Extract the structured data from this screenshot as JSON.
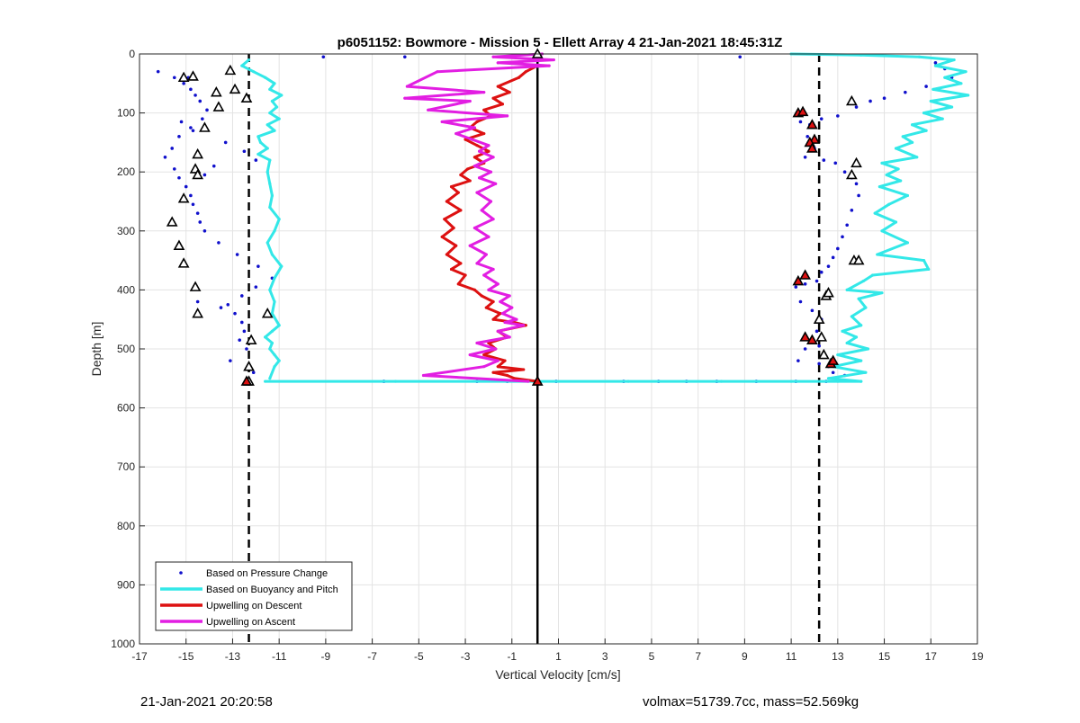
{
  "footer": {
    "timestamp": "21-Jan-2021 20:20:58",
    "info": "volmax=51739.7cc, mass=52.569kg"
  },
  "chart_data": {
    "type": "scatter",
    "title": "p6051152: Bowmore - Mission 5 - Ellett Array 4 21-Jan-2021 18:45:31Z",
    "xlabel": "Vertical Velocity [cm/s]",
    "ylabel": "Depth [m]",
    "xlim": [
      -17,
      19
    ],
    "ylim": [
      0,
      1000
    ],
    "y_reversed": true,
    "grid": true,
    "xticks": [
      -17,
      -15,
      -13,
      -11,
      -9,
      -7,
      -5,
      -3,
      -1,
      1,
      3,
      5,
      7,
      9,
      11,
      13,
      15,
      17,
      19
    ],
    "yticks": [
      0,
      100,
      200,
      300,
      400,
      500,
      600,
      700,
      800,
      900,
      1000
    ],
    "legend_position": "bottom-left",
    "reference_lines": [
      {
        "x": -12.3,
        "style": "dashed",
        "color": "#000000"
      },
      {
        "x": 0.1,
        "style": "solid",
        "color": "#000000"
      },
      {
        "x": 12.2,
        "style": "dashed",
        "color": "#000000"
      }
    ],
    "series": [
      {
        "name": "Based on Pressure Change",
        "kind": "points",
        "color": "#1010cc",
        "x": [
          -16.2,
          -15.5,
          -14.9,
          -15.1,
          -14.8,
          -14.6,
          -14.4,
          -14.1,
          -14.3,
          -14.8,
          -15.3,
          -15.6,
          -15.9,
          -15.5,
          -15.3,
          -15.0,
          -14.8,
          -14.7,
          -14.5,
          -14.4,
          -14.2,
          -13.6,
          -12.8,
          -11.9,
          -11.3,
          -12.0,
          -12.6,
          -13.2,
          -13.5,
          -12.9,
          -12.6,
          -12.5,
          -12.7,
          -12.4,
          -9.1,
          -5.6,
          -15.2,
          -14.7,
          -13.3,
          -12.5,
          -12.0,
          -13.8,
          -14.2,
          -14.5,
          -13.1,
          -12.1,
          8.8,
          17.2,
          17.6,
          17.9,
          16.8,
          15.9,
          15.0,
          14.4,
          13.8,
          13.0,
          12.3,
          11.8,
          11.4,
          11.7,
          12.0,
          11.6,
          12.4,
          12.9,
          13.3,
          13.6,
          13.8,
          13.9,
          13.6,
          13.4,
          13.2,
          13.0,
          12.8,
          12.6,
          12.3,
          12.1,
          11.6,
          11.2,
          11.4,
          11.9,
          12.3,
          12.1,
          12.3,
          12.2,
          11.6,
          11.3,
          12.2,
          12.6,
          12.8,
          13.3,
          14.1,
          -6.5,
          -2.5,
          -1.2,
          0.9,
          3.8,
          5.3,
          6.5,
          7.8,
          9.5,
          11.2,
          12.5
        ],
        "y": [
          30,
          40,
          40,
          50,
          60,
          70,
          80,
          95,
          110,
          125,
          140,
          160,
          175,
          195,
          210,
          225,
          240,
          255,
          270,
          285,
          300,
          320,
          340,
          360,
          380,
          395,
          410,
          425,
          430,
          440,
          455,
          470,
          485,
          500,
          5,
          5,
          115,
          130,
          150,
          165,
          180,
          190,
          205,
          420,
          520,
          540,
          5,
          15,
          25,
          40,
          55,
          65,
          75,
          80,
          90,
          105,
          110,
          120,
          115,
          140,
          160,
          175,
          180,
          185,
          200,
          210,
          220,
          240,
          265,
          290,
          310,
          330,
          345,
          360,
          370,
          385,
          390,
          395,
          420,
          435,
          450,
          470,
          480,
          495,
          500,
          520,
          525,
          530,
          540,
          545,
          540,
          555,
          555,
          555,
          555,
          555,
          555,
          555,
          555,
          555,
          555,
          555
        ]
      },
      {
        "name": "Based on Buoyancy and Pitch",
        "kind": "line",
        "color": "#33e8e8",
        "segments": [
          {
            "x": [
              -12.3,
              -12.6,
              -12.1,
              -11.6,
              -11.2,
              -11.4,
              -10.9,
              -11.3,
              -11.1,
              -11.4,
              -11.0,
              -11.5,
              -11.2,
              -11.9,
              -11.8,
              -11.5,
              -11.9,
              -11.4,
              -11.5,
              -11.4,
              -11.3,
              -11.4,
              -11.0,
              -11.2,
              -11.5,
              -11.3,
              -10.9,
              -11.2,
              -11.4,
              -11.2,
              -11.3,
              -11.0,
              -11.3,
              -11.6,
              -11.3,
              -11.4,
              -11.2,
              -11.0,
              -11.2,
              -11.4
            ],
            "y": [
              10,
              20,
              30,
              40,
              50,
              60,
              70,
              80,
              90,
              100,
              110,
              120,
              130,
              140,
              150,
              160,
              170,
              180,
              200,
              220,
              240,
              260,
              280,
              300,
              320,
              340,
              360,
              380,
              400,
              420,
              440,
              460,
              470,
              480,
              490,
              500,
              510,
              520,
              530,
              550
            ]
          },
          {
            "x": [
              -11.6,
              -6,
              0,
              4,
              8,
              11,
              13,
              14.0
            ],
            "y": [
              555,
              555,
              555,
              555,
              555,
              555,
              555,
              555
            ]
          },
          {
            "x": [
              11.0,
              14,
              16.5,
              18.0,
              17.2,
              18.5,
              17.6,
              18.3,
              17.1,
              18.6,
              17.0,
              17.9,
              16.7,
              17.5,
              16.2,
              16.8,
              15.8,
              16.2,
              15.5,
              16.4,
              14.9,
              15.6,
              15.1,
              15.7,
              14.8,
              16.0,
              15.2,
              14.6,
              15.5,
              14.9,
              16.0,
              14.7,
              16.7,
              16.9,
              14.5,
              14.1,
              13.4,
              14.9,
              13.9,
              14.2,
              13.6,
              14.0,
              13.2,
              13.8,
              13.4,
              14.3,
              13.0,
              14.0,
              12.8,
              14.2,
              12.6,
              14.0
            ],
            "y": [
              0,
              2,
              5,
              10,
              20,
              30,
              40,
              50,
              60,
              70,
              80,
              90,
              100,
              110,
              120,
              130,
              140,
              150,
              160,
              175,
              185,
              195,
              205,
              215,
              225,
              240,
              255,
              270,
              285,
              300,
              320,
              340,
              350,
              365,
              375,
              385,
              400,
              405,
              415,
              430,
              445,
              460,
              470,
              480,
              490,
              500,
              510,
              520,
              530,
              540,
              550,
              555
            ]
          }
        ]
      },
      {
        "name": "Upwelling on Descent",
        "kind": "line",
        "color": "#dd1111",
        "x": [
          0.1,
          -0.4,
          -0.7,
          -1.6,
          -1.1,
          -1.8,
          -1.4,
          -2.2,
          -1.9,
          -2.5,
          -2.8,
          -2.2,
          -3.0,
          -2.5,
          -2.0,
          -2.6,
          -2.2,
          -2.9,
          -3.2,
          -2.8,
          -3.6,
          -3.3,
          -3.8,
          -3.2,
          -3.9,
          -3.5,
          -4.0,
          -3.4,
          -3.8,
          -3.2,
          -3.6,
          -3.0,
          -3.3,
          -2.6,
          -2.3,
          -1.8,
          -2.1,
          -1.5,
          -1.8,
          -0.9,
          -0.4,
          -1.6,
          -1.2,
          -2.0,
          -1.7,
          -2.2,
          -1.3,
          -1.6,
          -0.5,
          -1.8,
          -1.2,
          -0.9,
          0.1
        ],
        "y": [
          20,
          30,
          40,
          55,
          65,
          75,
          85,
          95,
          105,
          115,
          125,
          135,
          145,
          155,
          165,
          175,
          185,
          195,
          205,
          215,
          225,
          235,
          250,
          265,
          280,
          295,
          310,
          325,
          340,
          355,
          365,
          375,
          390,
          400,
          410,
          420,
          430,
          440,
          450,
          455,
          460,
          470,
          480,
          490,
          500,
          510,
          520,
          530,
          535,
          540,
          545,
          550,
          555
        ]
      },
      {
        "name": "Upwelling on Ascent",
        "kind": "line",
        "color": "#e21ee2",
        "x": [
          0.3,
          -1.8,
          0.8,
          -1.6,
          0.6,
          -4.2,
          -5.5,
          -2.2,
          -5.6,
          -2.8,
          -4.6,
          -1.2,
          -4.0,
          -2.6,
          -3.4,
          -2.7,
          -2.0,
          -2.4,
          -1.8,
          -2.6,
          -1.9,
          -2.4,
          -1.7,
          -2.5,
          -1.9,
          -2.3,
          -1.8,
          -2.6,
          -2.0,
          -2.8,
          -2.1,
          -2.5,
          -1.8,
          -2.2,
          -1.6,
          -2.0,
          -1.1,
          -1.5,
          -1.0,
          -1.4,
          -0.8,
          -1.3,
          -0.5,
          -1.6,
          -1.1,
          -2.5,
          -1.7,
          -2.8,
          -1.6,
          -2.2,
          -4.8,
          -0.3
        ],
        "y": [
          0,
          5,
          10,
          15,
          20,
          30,
          55,
          65,
          75,
          80,
          95,
          105,
          115,
          125,
          135,
          145,
          155,
          165,
          175,
          190,
          200,
          210,
          220,
          235,
          250,
          265,
          280,
          295,
          310,
          325,
          340,
          355,
          365,
          375,
          390,
          400,
          410,
          420,
          430,
          440,
          450,
          455,
          460,
          470,
          480,
          490,
          500,
          510,
          520,
          530,
          545,
          555
        ]
      },
      {
        "name": "",
        "kind": "markers",
        "marker": "triangle",
        "color": "#ffffff",
        "edge": "#000000",
        "x": [
          -15.1,
          -14.7,
          -13.1,
          -13.7,
          -12.9,
          -12.4,
          -13.6,
          -14.2,
          -14.5,
          -14.6,
          -14.5,
          -15.1,
          -15.6,
          -15.3,
          -15.1,
          -14.6,
          -14.5,
          -11.5,
          -12.2,
          -12.3,
          13.6,
          13.8,
          13.6,
          13.7,
          13.9,
          12.5,
          12.6,
          12.2,
          12.3,
          12.4,
          0.1,
          -12.3
        ],
        "y": [
          40,
          38,
          28,
          65,
          60,
          75,
          90,
          125,
          170,
          195,
          205,
          245,
          285,
          325,
          355,
          395,
          440,
          440,
          485,
          530,
          80,
          185,
          205,
          350,
          350,
          410,
          405,
          450,
          480,
          510,
          0,
          555
        ]
      },
      {
        "name": "",
        "kind": "markers",
        "marker": "triangle",
        "color": "#dd1111",
        "edge": "#000000",
        "x": [
          11.3,
          11.5,
          11.9,
          12.0,
          11.8,
          11.9,
          11.6,
          11.3,
          11.6,
          11.9,
          12.7,
          12.8,
          0.1,
          -12.4
        ],
        "y": [
          100,
          98,
          120,
          145,
          150,
          160,
          375,
          385,
          480,
          485,
          525,
          520,
          555,
          555
        ]
      }
    ]
  }
}
